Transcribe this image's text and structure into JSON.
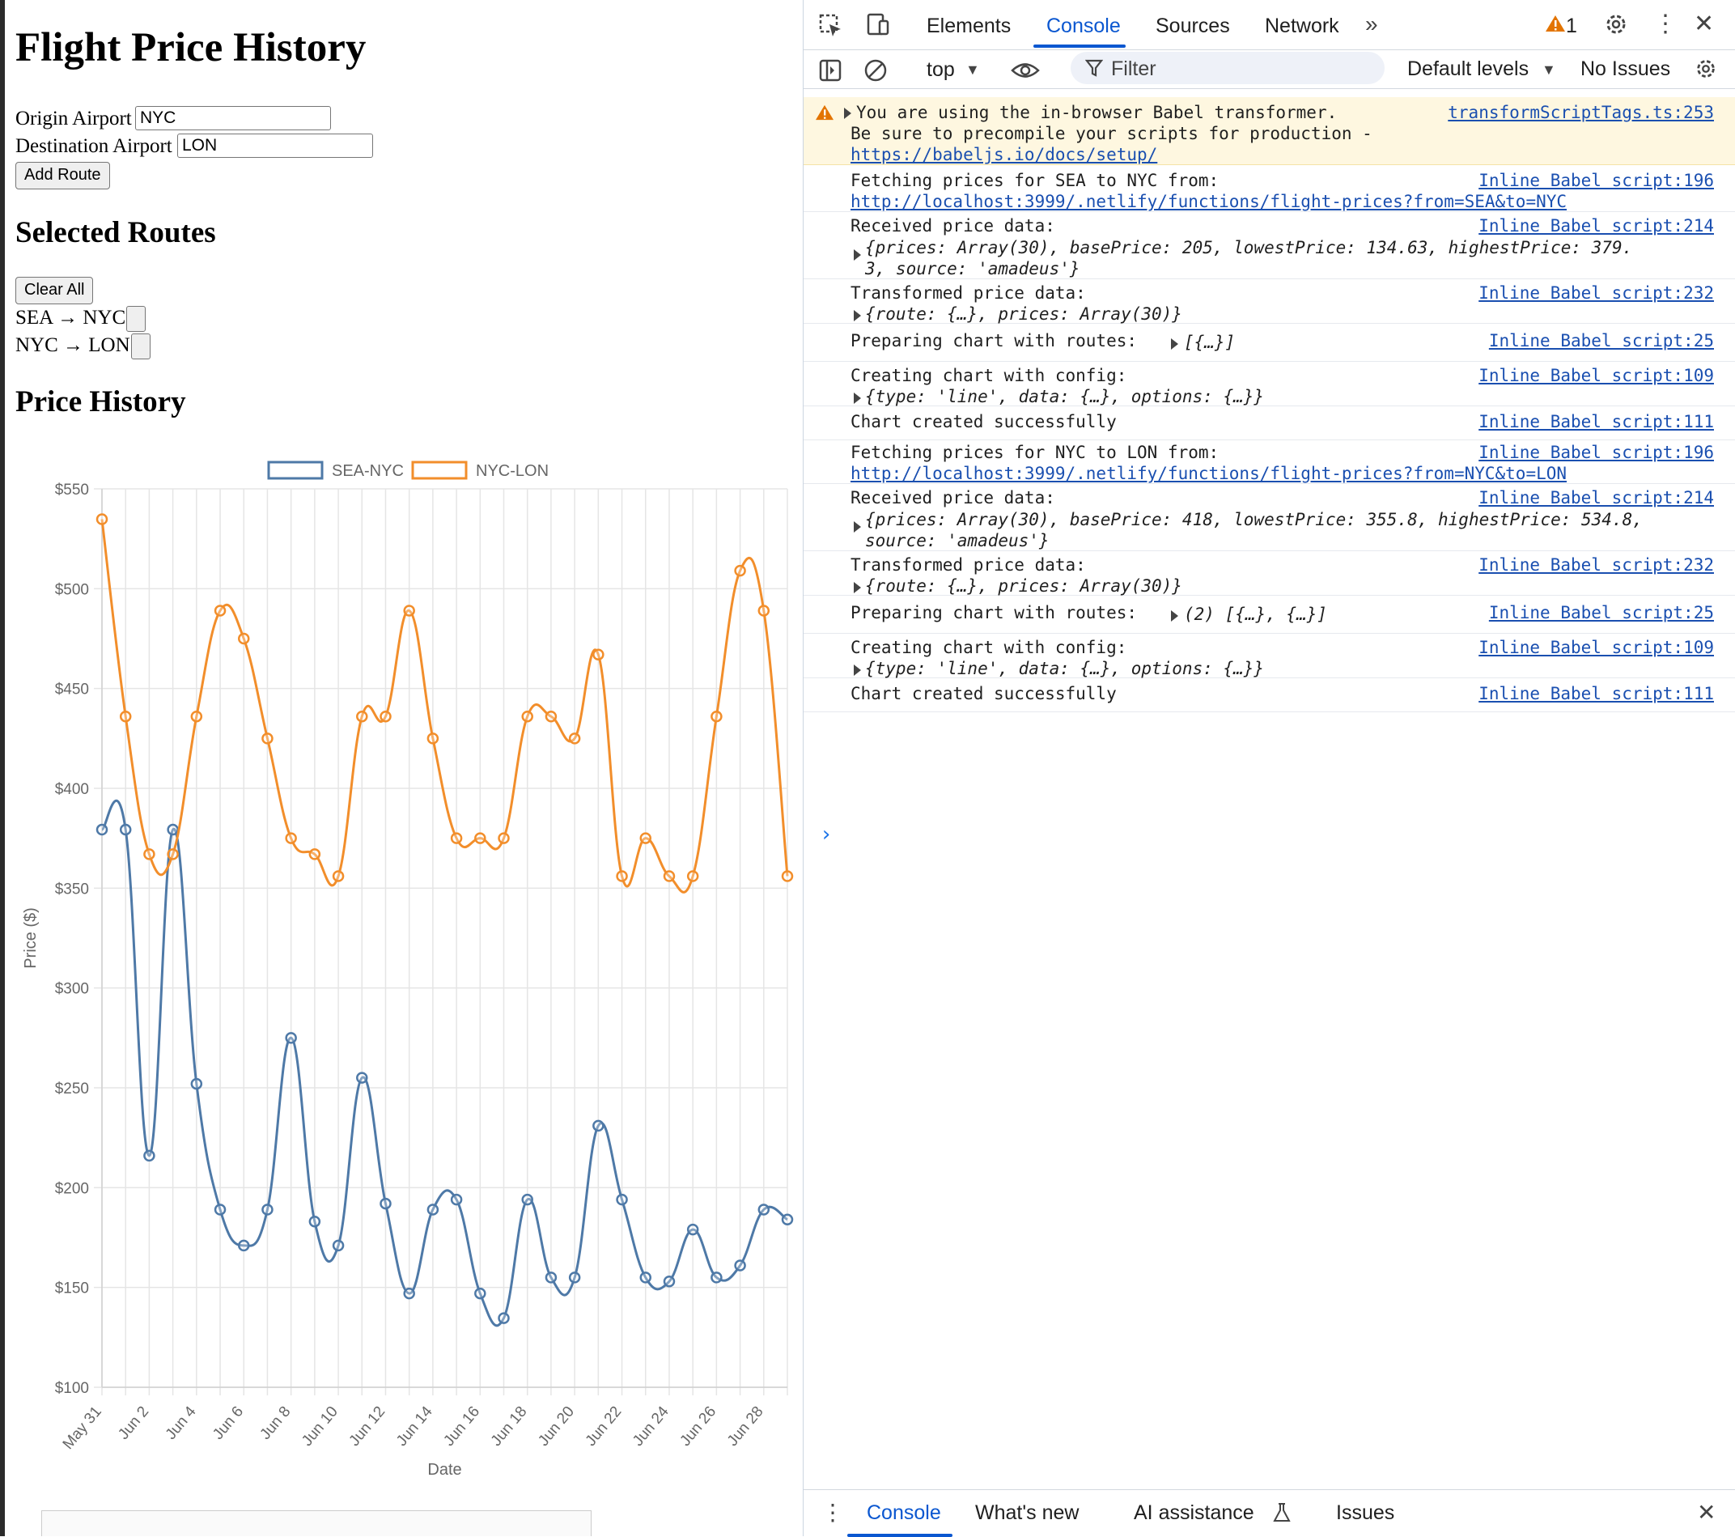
{
  "page": {
    "title": "Flight Price History",
    "origin_label": "Origin Airport",
    "origin_value": "NYC",
    "destination_label": "Destination Airport",
    "destination_value": "LON",
    "add_route_label": "Add Route",
    "selected_routes_heading": "Selected Routes",
    "clear_all_label": "Clear All",
    "routes": [
      "SEA → NYC",
      "NYC → LON"
    ],
    "price_history_heading": "Price History"
  },
  "chart_data": {
    "type": "line",
    "xlabel": "Date",
    "ylabel": "Price ($)",
    "ylim": [
      100,
      550
    ],
    "yticks": [
      "$100",
      "$150",
      "$200",
      "$250",
      "$300",
      "$350",
      "$400",
      "$450",
      "$500",
      "$550"
    ],
    "x": [
      "May 31",
      "Jun 1",
      "Jun 2",
      "Jun 3",
      "Jun 4",
      "Jun 5",
      "Jun 6",
      "Jun 7",
      "Jun 8",
      "Jun 9",
      "Jun 10",
      "Jun 11",
      "Jun 12",
      "Jun 13",
      "Jun 14",
      "Jun 15",
      "Jun 16",
      "Jun 17",
      "Jun 18",
      "Jun 19",
      "Jun 20",
      "Jun 21",
      "Jun 22",
      "Jun 23",
      "Jun 24",
      "Jun 25",
      "Jun 26",
      "Jun 27",
      "Jun 28",
      "Jun 29"
    ],
    "xtick_labels": [
      "May 31",
      "Jun 2",
      "Jun 4",
      "Jun 6",
      "Jun 8",
      "Jun 10",
      "Jun 12",
      "Jun 14",
      "Jun 16",
      "Jun 18",
      "Jun 20",
      "Jun 22",
      "Jun 24",
      "Jun 26",
      "Jun 28"
    ],
    "legend_position": "top",
    "grid": true,
    "series": [
      {
        "name": "SEA-NYC",
        "color": "#4e79a7",
        "values": [
          379.3,
          379.3,
          216,
          379.3,
          252,
          189,
          171,
          189,
          275,
          183,
          171,
          255,
          192,
          147,
          189,
          194,
          147,
          134.63,
          194,
          155,
          155,
          231,
          194,
          155,
          153,
          179,
          155,
          161,
          189,
          184
        ]
      },
      {
        "name": "NYC-LON",
        "color": "#f28e2b",
        "values": [
          534.8,
          436,
          367,
          367,
          436,
          489,
          475,
          425,
          375,
          367,
          356,
          436,
          436,
          489,
          425,
          375,
          375,
          375,
          436,
          436,
          425,
          467,
          356,
          375,
          356,
          356,
          436,
          509,
          489,
          356
        ]
      }
    ]
  },
  "devtools": {
    "tabs": [
      "Elements",
      "Console",
      "Sources",
      "Network"
    ],
    "active_tab": "Console",
    "warning_count": "1",
    "context": "top",
    "filter_placeholder": "Filter",
    "levels": "Default levels",
    "issues": "No Issues",
    "messages": [
      {
        "lines": [
          "You are using the in-browser Babel transformer.",
          "Be sure to precompile your scripts for production -",
          "https://babeljs.io/docs/setup/"
        ],
        "source": "transformScriptTags.ts:253"
      },
      {
        "lines": [
          "Fetching prices for SEA to NYC from:",
          "http://localhost:3999/.netlify/functions/flight-prices?from=SEA&to=NYC"
        ],
        "source": "Inline Babel script:196"
      },
      {
        "lines": [
          "Received price data:",
          "{prices: Array(30), basePrice: 205, lowestPrice: 134.63, highestPrice: 379.",
          "3, source: 'amadeus'}"
        ],
        "source": "Inline Babel script:214"
      },
      {
        "lines": [
          "Transformed price data:",
          "{route: {…}, prices: Array(30)}"
        ],
        "source": "Inline Babel script:232"
      },
      {
        "lines": [
          "Preparing chart with routes:",
          "[{…}]"
        ],
        "source": "Inline Babel script:25"
      },
      {
        "lines": [
          "Creating chart with config:",
          "{type: 'line', data: {…}, options: {…}}"
        ],
        "source": "Inline Babel script:109"
      },
      {
        "lines": [
          "Chart created successfully"
        ],
        "source": "Inline Babel script:111"
      },
      {
        "lines": [
          "Fetching prices for NYC to LON from:",
          "http://localhost:3999/.netlify/functions/flight-prices?from=NYC&to=LON"
        ],
        "source": "Inline Babel script:196"
      },
      {
        "lines": [
          "Received price data:",
          "{prices: Array(30), basePrice: 418, lowestPrice: 355.8, highestPrice: 534.8,",
          "source: 'amadeus'}"
        ],
        "source": "Inline Babel script:214"
      },
      {
        "lines": [
          "Transformed price data:",
          "{route: {…}, prices: Array(30)}"
        ],
        "source": "Inline Babel script:232"
      },
      {
        "lines": [
          "Preparing chart with routes:",
          "(2) [{…}, {…}]"
        ],
        "source": "Inline Babel script:25"
      },
      {
        "lines": [
          "Creating chart with config:",
          "{type: 'line', data: {…}, options: {…}}"
        ],
        "source": "Inline Babel script:109"
      },
      {
        "lines": [
          "Chart created successfully"
        ],
        "source": "Inline Babel script:111"
      }
    ],
    "drawer_tabs": [
      "Console",
      "What's new",
      "AI assistance",
      "Issues"
    ]
  }
}
